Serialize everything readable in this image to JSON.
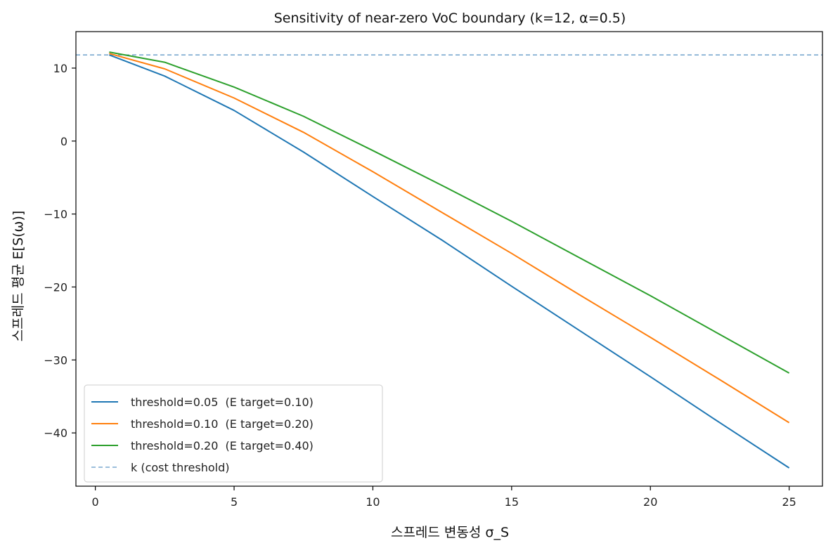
{
  "chart_data": {
    "type": "line",
    "title": "Sensitivity of near-zero VoC boundary (k=12, α=0.5)",
    "xlabel": "스프레드 변동성 σ_S",
    "ylabel": "스프레드 평균 E[S(ω)]",
    "xlim": [
      -0.7,
      26.2
    ],
    "ylim": [
      -47.3,
      15.0
    ],
    "x_ticks": [
      0,
      5,
      10,
      15,
      20,
      25
    ],
    "y_ticks": [
      -40,
      -30,
      -20,
      -10,
      0,
      10
    ],
    "x_tick_labels": [
      "0",
      "5",
      "10",
      "15",
      "20",
      "25"
    ],
    "y_tick_labels": [
      "−40",
      "−30",
      "−20",
      "−10",
      "0",
      "10"
    ],
    "grid": false,
    "legend_position": "lower-left",
    "x": [
      0.5,
      2.5,
      5,
      7.5,
      10,
      12.5,
      15,
      17.5,
      20,
      22.5,
      25
    ],
    "series": [
      {
        "name": "threshold=0.05  (E target=0.10)",
        "color": "#1f77b4",
        "style": "solid",
        "values": [
          11.8,
          8.9,
          4.2,
          -1.5,
          -7.6,
          -13.6,
          -19.9,
          -26.1,
          -32.3,
          -38.6,
          -44.8
        ]
      },
      {
        "name": "threshold=0.10  (E target=0.20)",
        "color": "#ff7f0e",
        "style": "solid",
        "values": [
          12.0,
          9.9,
          5.9,
          1.2,
          -4.2,
          -9.8,
          -15.4,
          -21.2,
          -26.9,
          -32.7,
          -38.6
        ]
      },
      {
        "name": "threshold=0.20  (E target=0.40)",
        "color": "#2ca02c",
        "style": "solid",
        "values": [
          12.2,
          10.8,
          7.4,
          3.4,
          -1.3,
          -6.1,
          -11.0,
          -16.1,
          -21.2,
          -26.5,
          -31.8
        ]
      }
    ],
    "reference_line": {
      "name": "k (cost threshold)",
      "y": 11.8,
      "color": "#7aa9cf",
      "style": "dashed"
    }
  }
}
